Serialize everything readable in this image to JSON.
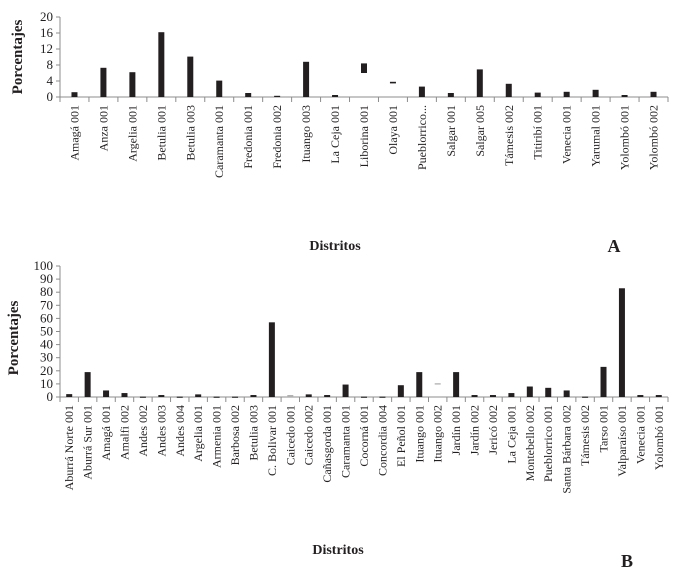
{
  "chart_data": [
    {
      "type": "bar",
      "panel": "A",
      "xlabel": "Distritos",
      "ylabel": "Porcentajes",
      "ylim": [
        0,
        20
      ],
      "yticks": [
        0,
        4,
        8,
        12,
        16,
        20
      ],
      "grid": false,
      "categories": [
        "Amagá 001",
        "Anza 001",
        "Argelia 001",
        "Betulia 001",
        "Betulia 003",
        "Caramanta 001",
        "Fredonia 001",
        "Fredonia 002",
        "Ituango 003",
        "La Ceja 001",
        "Liborina 001",
        "Olaya 001",
        "Pueblorrico...",
        "Salgar 001",
        "Salgar 005",
        "Támesis 002",
        "Titiribí 001",
        "Venecia 001",
        "Yarumal 001",
        "Yolombó 001",
        "Yolombó 002"
      ],
      "values": [
        1.2,
        7.3,
        6.2,
        16.2,
        10.1,
        4.1,
        1.0,
        0.3,
        8.8,
        0.5,
        8.4,
        3.8,
        2.6,
        1.0,
        6.9,
        3.3,
        1.1,
        1.3,
        1.8,
        0.5,
        1.3
      ],
      "bases": [
        0,
        0,
        0,
        0,
        0,
        0,
        0,
        0,
        0,
        0,
        6.0,
        3.4,
        0,
        0,
        0,
        0,
        0,
        0,
        0,
        0,
        0
      ]
    },
    {
      "type": "bar",
      "panel": "B",
      "xlabel": "Distritos",
      "ylabel": "Porcentajes",
      "ylim": [
        0,
        100
      ],
      "yticks": [
        0,
        10,
        20,
        30,
        40,
        50,
        60,
        70,
        80,
        90,
        100
      ],
      "grid": false,
      "categories": [
        "Aburrá Norte 001",
        "Aburrá Sur 001",
        "Amagá 001",
        "Amalfi 002",
        "Andes 002",
        "Andes 003",
        "Andes 004",
        "Argelia 001",
        "Armenia 001",
        "Barbosa 002",
        "Betulia 003",
        "C. Bolivar 001",
        "Caicedo 001",
        "Caicedo 002",
        "Cañasgorda 001",
        "Caramanta 001",
        "Cocorná 001",
        "Concordia 004",
        "El Peñol 001",
        "Ituango 001",
        "Ituango 002",
        "Jardín 001",
        "Jardín 002",
        "Jericó 002",
        "La Ceja 001",
        "Montebello 002",
        "Pueblorrico 001",
        "Santa Bárbara 002",
        "Támesis 002",
        "Tarso 001",
        "Valparaíso 001",
        "Venecia 001",
        "Yolombó 001"
      ],
      "values": [
        2.2,
        19,
        5,
        3,
        0.3,
        1.5,
        0.3,
        2,
        0.3,
        0.3,
        1.5,
        57,
        1.5,
        2,
        1.5,
        9.5,
        0.3,
        0.3,
        9,
        19,
        10.5,
        19,
        1.5,
        1.5,
        3,
        8,
        7,
        5,
        0.3,
        23,
        83,
        1.5,
        1.5
      ],
      "bases": [
        0,
        0,
        0,
        0,
        0,
        0,
        0,
        0,
        0,
        0,
        0,
        0,
        0,
        0,
        0,
        0,
        0,
        0,
        0,
        0,
        9.5,
        0,
        0,
        0,
        0,
        0,
        0,
        0,
        0,
        0,
        0,
        0,
        0
      ],
      "light_bars": [
        "Caicedo 001",
        "Ituango 002"
      ]
    }
  ],
  "colors": {
    "bar": "#231f20",
    "light_bar": "#b0b0b0",
    "axis": "#8c8c8c"
  }
}
